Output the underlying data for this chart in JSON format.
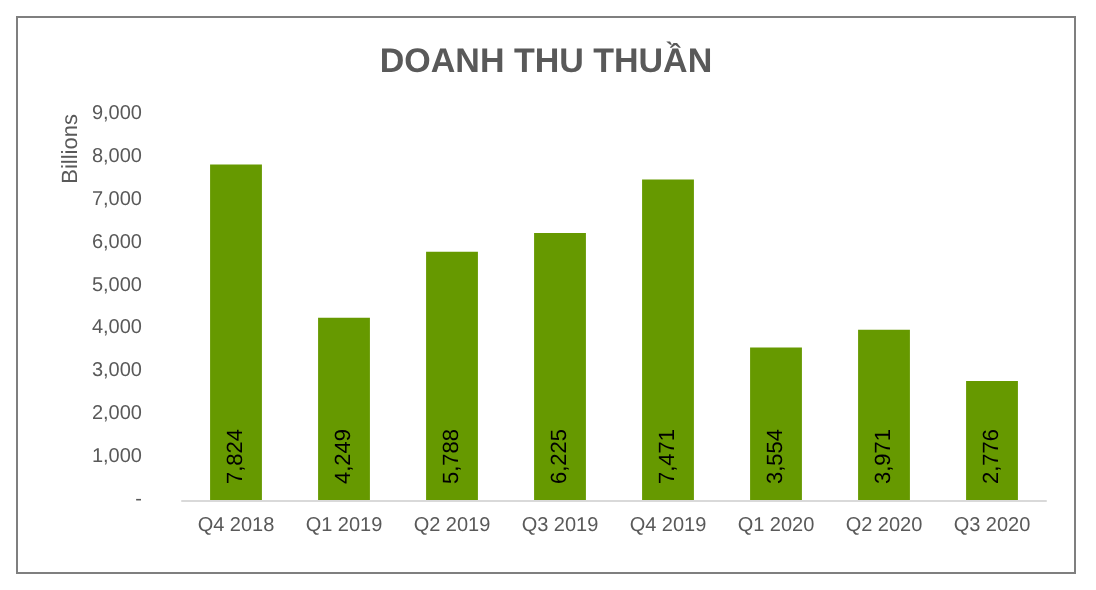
{
  "chart_data": {
    "type": "bar",
    "title": "DOANH THU THUẦN",
    "ylabel": "Billions",
    "categories": [
      "Q4 2018",
      "Q1 2019",
      "Q2 2019",
      "Q3 2019",
      "Q4 2019",
      "Q1 2020",
      "Q2 2020",
      "Q3 2020"
    ],
    "values": [
      7824,
      4249,
      5788,
      6225,
      7471,
      3554,
      3971,
      2776
    ],
    "value_labels": [
      "7,824",
      "4,249",
      "5,788",
      "6,225",
      "7,471",
      "3,554",
      "3,971",
      "2,776"
    ],
    "color": "#669900",
    "grid": false,
    "ylim": [
      0,
      9000
    ],
    "yticks": [
      {
        "value": 0,
        "label": "-"
      },
      {
        "value": 1000,
        "label": "1,000"
      },
      {
        "value": 2000,
        "label": "2,000"
      },
      {
        "value": 3000,
        "label": "3,000"
      },
      {
        "value": 4000,
        "label": "4,000"
      },
      {
        "value": 5000,
        "label": "5,000"
      },
      {
        "value": 6000,
        "label": "6,000"
      },
      {
        "value": 7000,
        "label": "7,000"
      },
      {
        "value": 8000,
        "label": "8,000"
      },
      {
        "value": 9000,
        "label": "9,000"
      }
    ]
  }
}
